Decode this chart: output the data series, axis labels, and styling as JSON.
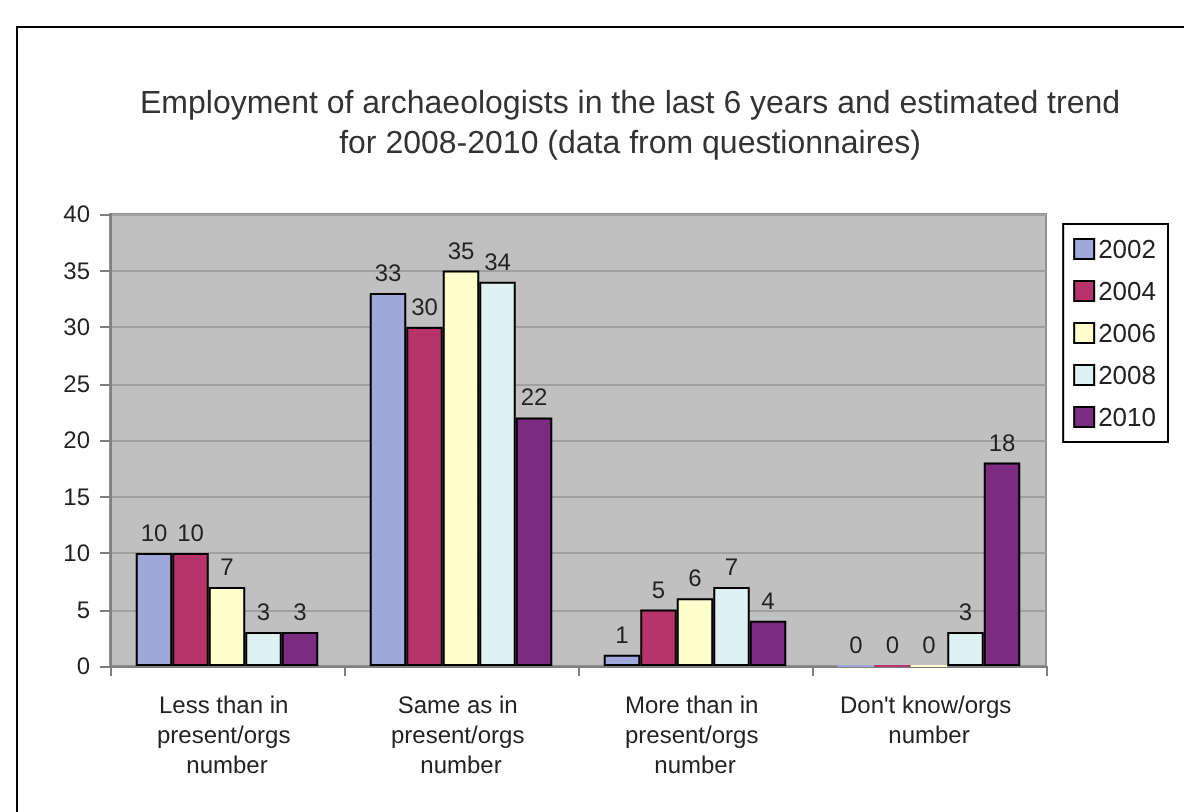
{
  "chart_data": {
    "type": "bar",
    "title": "Employment of archaeologists in the last 6 years and estimated trend for 2008-2010 (data from questionnaires)",
    "categories": [
      "Less than in present/orgs number",
      "Same as in present/orgs number",
      "More than in present/orgs number",
      "Don't know/orgs number"
    ],
    "series": [
      {
        "name": "2002",
        "color": "#9fa8d8",
        "values": [
          10,
          33,
          1,
          0
        ]
      },
      {
        "name": "2004",
        "color": "#b8336a",
        "values": [
          10,
          30,
          5,
          0
        ]
      },
      {
        "name": "2006",
        "color": "#ffffcc",
        "values": [
          7,
          35,
          6,
          0
        ]
      },
      {
        "name": "2008",
        "color": "#dff2f2",
        "values": [
          3,
          34,
          7,
          3
        ]
      },
      {
        "name": "2010",
        "color": "#7b2c80",
        "values": [
          3,
          22,
          4,
          18
        ]
      }
    ],
    "ylim": [
      0,
      40
    ],
    "yticks": [
      0,
      5,
      10,
      15,
      20,
      25,
      30,
      35,
      40
    ],
    "grid": "y",
    "legend": "right",
    "data_labels": true
  }
}
